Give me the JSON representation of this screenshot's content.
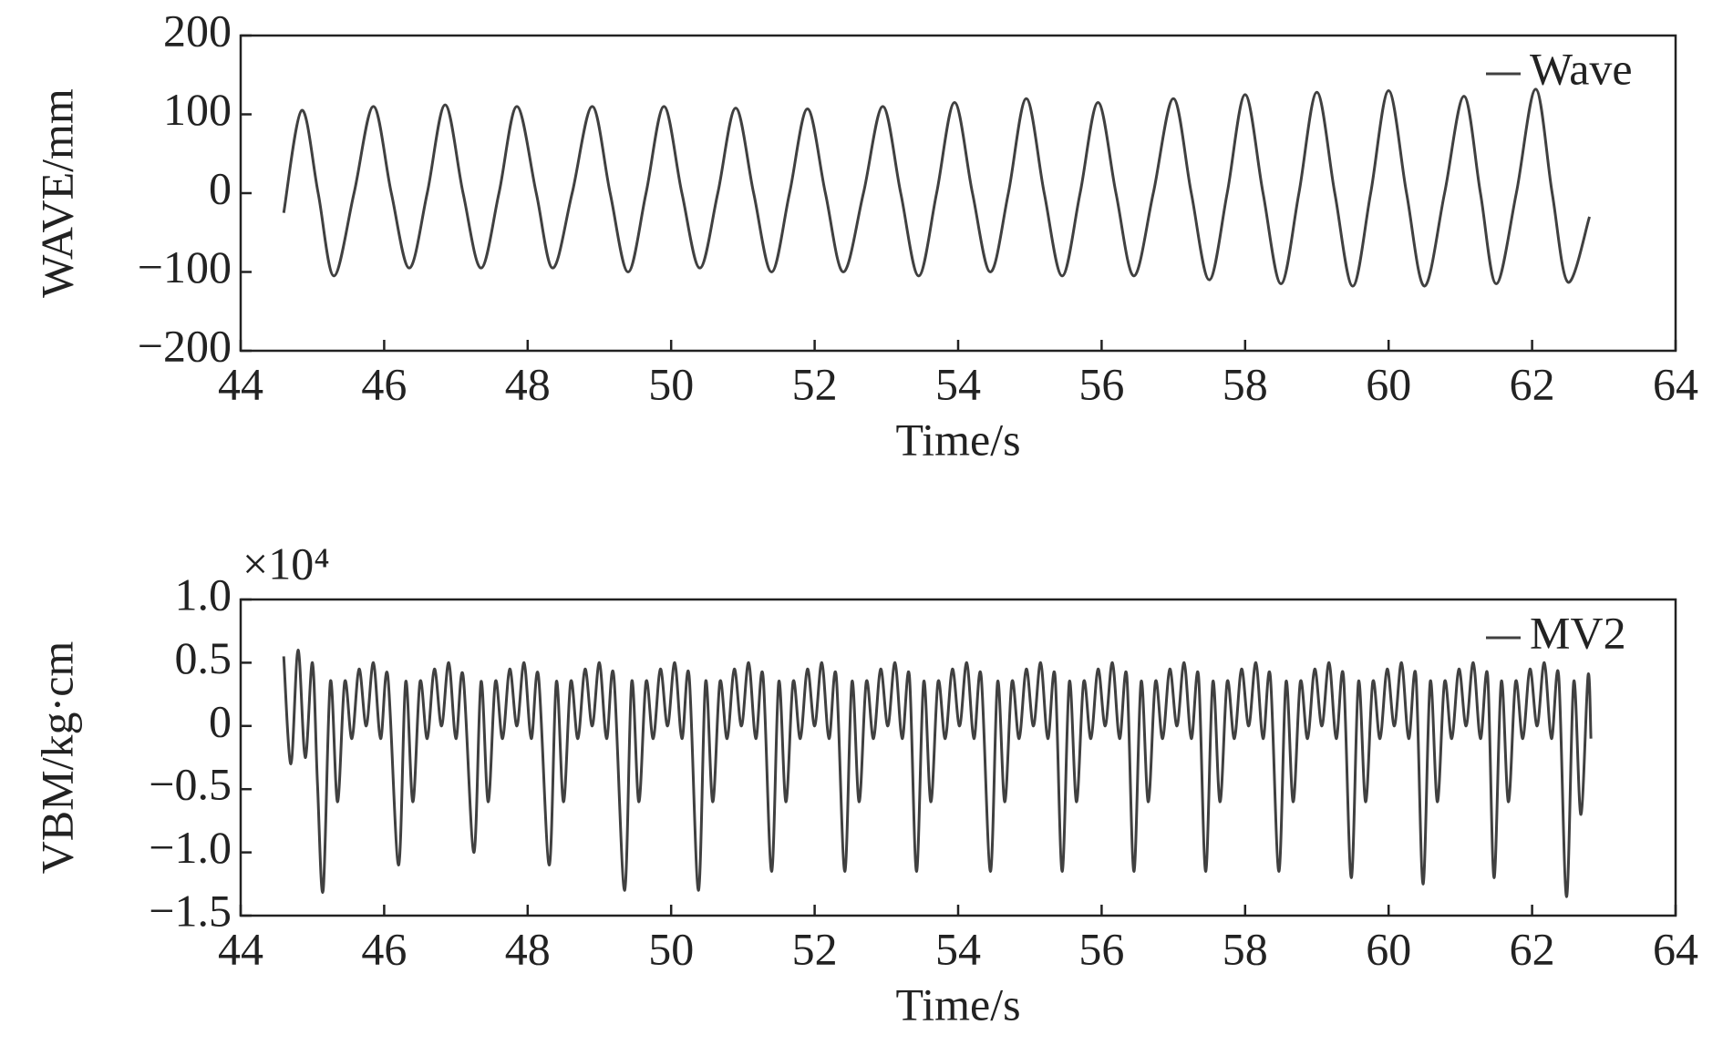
{
  "chart_data": [
    {
      "type": "line",
      "xlabel": "Time/s",
      "ylabel": "WAVE/mm",
      "xlim": [
        44,
        64
      ],
      "xticks": [
        44,
        46,
        48,
        50,
        52,
        54,
        56,
        58,
        60,
        62,
        64
      ],
      "ylim": [
        -200,
        200
      ],
      "yticks": [
        {
          "value": -200,
          "label": "−200"
        },
        {
          "value": -100,
          "label": "−100"
        },
        0,
        100,
        200
      ],
      "legend": "upper right",
      "series": [
        {
          "name": "Wave",
          "color": "#404040",
          "x": [
            44.6,
            44.85,
            45.08,
            45.3,
            45.58,
            45.85,
            46.1,
            46.35,
            46.6,
            46.85,
            47.1,
            47.35,
            47.6,
            47.85,
            48.12,
            48.35,
            48.62,
            48.9,
            49.15,
            49.4,
            49.65,
            49.9,
            50.15,
            50.4,
            50.65,
            50.9,
            51.15,
            51.4,
            51.65,
            51.9,
            52.15,
            52.4,
            52.68,
            52.95,
            53.2,
            53.45,
            53.7,
            53.95,
            54.2,
            54.45,
            54.7,
            54.95,
            55.2,
            55.45,
            55.7,
            55.95,
            56.2,
            56.45,
            56.72,
            57.0,
            57.25,
            57.5,
            57.75,
            58.0,
            58.25,
            58.5,
            58.75,
            59.0,
            59.25,
            59.5,
            59.75,
            60.0,
            60.25,
            60.5,
            60.78,
            61.05,
            61.28,
            61.5,
            61.78,
            62.05,
            62.28,
            62.5,
            62.8
          ],
          "values": [
            -25,
            105,
            0,
            -105,
            0,
            110,
            0,
            -95,
            0,
            112,
            0,
            -95,
            0,
            110,
            0,
            -95,
            0,
            110,
            0,
            -100,
            0,
            110,
            0,
            -95,
            0,
            108,
            0,
            -100,
            0,
            107,
            0,
            -100,
            0,
            110,
            0,
            -105,
            0,
            115,
            0,
            -100,
            0,
            120,
            0,
            -105,
            0,
            115,
            0,
            -105,
            0,
            120,
            0,
            -110,
            0,
            125,
            0,
            -115,
            0,
            128,
            0,
            -118,
            0,
            130,
            0,
            -118,
            0,
            123,
            0,
            -115,
            0,
            132,
            0,
            -113,
            -30
          ]
        }
      ]
    },
    {
      "type": "line",
      "xlabel": "Time/s",
      "ylabel": "VBM/kg·cm",
      "axis_multiplier": "×10⁴",
      "xlim": [
        44,
        64
      ],
      "xticks": [
        44,
        46,
        48,
        50,
        52,
        54,
        56,
        58,
        60,
        62,
        64
      ],
      "ylim": [
        -1.5,
        1
      ],
      "yticks": [
        {
          "value": -1.5,
          "label": "−1.5"
        },
        {
          "value": -1,
          "label": "−1.0"
        },
        {
          "value": -0.5,
          "label": "−0.5"
        },
        0,
        0.5,
        {
          "value": 1,
          "label": "1.0"
        }
      ],
      "legend": "upper right",
      "series": [
        {
          "name": "MV2",
          "color": "#404040",
          "x": [
            44.6,
            44.7,
            44.8,
            44.9,
            45.0,
            45.07,
            45.15,
            45.25,
            45.35,
            45.45,
            45.55,
            45.65,
            45.75,
            45.85,
            45.95,
            46.05,
            46.2,
            46.3,
            46.4,
            46.5,
            46.6,
            46.7,
            46.8,
            46.9,
            47.0,
            47.1,
            47.25,
            47.35,
            47.45,
            47.55,
            47.65,
            47.75,
            47.85,
            47.95,
            48.05,
            48.15,
            48.3,
            48.4,
            48.5,
            48.6,
            48.7,
            48.8,
            48.9,
            49.0,
            49.1,
            49.2,
            49.35,
            49.45,
            49.55,
            49.65,
            49.75,
            49.85,
            49.95,
            50.05,
            50.15,
            50.25,
            50.38,
            50.48,
            50.58,
            50.68,
            50.78,
            50.88,
            50.98,
            51.08,
            51.18,
            51.28,
            51.4,
            51.5,
            51.6,
            51.7,
            51.8,
            51.9,
            52.0,
            52.1,
            52.2,
            52.3,
            52.42,
            52.52,
            52.62,
            52.72,
            52.82,
            52.92,
            53.02,
            53.12,
            53.22,
            53.32,
            53.42,
            53.52,
            53.62,
            53.72,
            53.82,
            53.92,
            54.02,
            54.12,
            54.22,
            54.32,
            54.45,
            54.55,
            54.65,
            54.75,
            54.85,
            54.95,
            55.05,
            55.15,
            55.25,
            55.35,
            55.45,
            55.55,
            55.65,
            55.75,
            55.85,
            55.95,
            56.05,
            56.15,
            56.25,
            56.35,
            56.45,
            56.55,
            56.65,
            56.75,
            56.85,
            56.95,
            57.05,
            57.15,
            57.25,
            57.35,
            57.45,
            57.55,
            57.65,
            57.75,
            57.85,
            57.95,
            58.05,
            58.15,
            58.25,
            58.35,
            58.47,
            58.57,
            58.67,
            58.77,
            58.87,
            58.97,
            59.07,
            59.17,
            59.27,
            59.37,
            59.48,
            59.58,
            59.68,
            59.78,
            59.88,
            59.98,
            60.08,
            60.18,
            60.28,
            60.38,
            60.48,
            60.58,
            60.68,
            60.78,
            60.88,
            60.98,
            61.08,
            61.18,
            61.28,
            61.38,
            61.47,
            61.57,
            61.67,
            61.77,
            61.87,
            61.97,
            62.07,
            62.17,
            62.27,
            62.37,
            62.48,
            62.58,
            62.68,
            62.78,
            62.82
          ],
          "values": [
            0.55,
            -0.3,
            0.6,
            -0.25,
            0.5,
            -0.45,
            -1.3,
            0.35,
            -0.6,
            0.35,
            -0.1,
            0.45,
            0.0,
            0.5,
            -0.1,
            0.4,
            -1.1,
            0.35,
            -0.6,
            0.35,
            -0.1,
            0.45,
            0.0,
            0.5,
            -0.1,
            0.4,
            -1.0,
            0.35,
            -0.6,
            0.35,
            -0.1,
            0.45,
            0.0,
            0.5,
            -0.1,
            0.4,
            -1.1,
            0.35,
            -0.6,
            0.35,
            -0.1,
            0.45,
            0.0,
            0.5,
            -0.1,
            0.4,
            -1.3,
            0.35,
            -0.6,
            0.35,
            -0.1,
            0.45,
            0.0,
            0.5,
            -0.1,
            0.4,
            -1.3,
            0.35,
            -0.6,
            0.35,
            -0.1,
            0.45,
            0.0,
            0.5,
            -0.1,
            0.4,
            -1.15,
            0.35,
            -0.6,
            0.35,
            -0.1,
            0.45,
            0.0,
            0.5,
            -0.1,
            0.4,
            -1.15,
            0.35,
            -0.6,
            0.35,
            -0.1,
            0.45,
            0.0,
            0.5,
            -0.1,
            0.4,
            -1.15,
            0.35,
            -0.6,
            0.35,
            -0.1,
            0.45,
            0.0,
            0.5,
            -0.1,
            0.4,
            -1.15,
            0.35,
            -0.6,
            0.35,
            -0.1,
            0.45,
            0.0,
            0.5,
            -0.1,
            0.4,
            -1.15,
            0.35,
            -0.6,
            0.35,
            -0.1,
            0.45,
            0.0,
            0.5,
            -0.1,
            0.4,
            -1.15,
            0.35,
            -0.6,
            0.35,
            -0.1,
            0.45,
            0.0,
            0.5,
            -0.1,
            0.4,
            -1.15,
            0.35,
            -0.6,
            0.35,
            -0.1,
            0.45,
            0.0,
            0.5,
            -0.1,
            0.4,
            -1.15,
            0.35,
            -0.6,
            0.35,
            -0.1,
            0.45,
            0.0,
            0.5,
            -0.1,
            0.4,
            -1.2,
            0.35,
            -0.6,
            0.35,
            -0.1,
            0.45,
            0.0,
            0.5,
            -0.1,
            0.4,
            -1.25,
            0.35,
            -0.6,
            0.35,
            -0.1,
            0.45,
            0.0,
            0.5,
            -0.1,
            0.4,
            -1.2,
            0.35,
            -0.6,
            0.35,
            -0.1,
            0.45,
            0.0,
            0.5,
            -0.1,
            0.4,
            -1.35,
            0.35,
            -0.7,
            0.4,
            -0.1
          ]
        }
      ]
    }
  ]
}
